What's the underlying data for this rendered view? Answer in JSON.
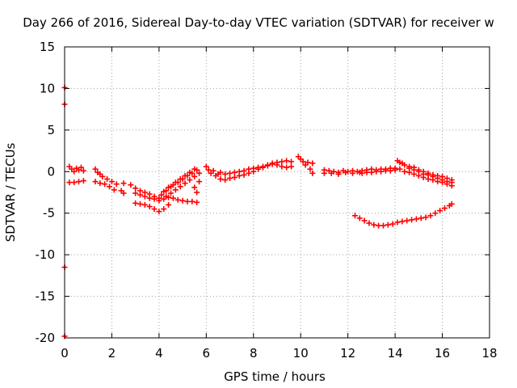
{
  "chart_data": {
    "type": "scatter",
    "title": "Day 266 of 2016, Sidereal Day-to-day VTEC variation (SDTVAR) for receiver w",
    "xlabel": "GPS time / hours",
    "ylabel": "SDTVAR / TECUs",
    "xlim": [
      0,
      18
    ],
    "ylim": [
      -20,
      15
    ],
    "xticks": [
      0,
      2,
      4,
      6,
      8,
      10,
      12,
      14,
      16,
      18
    ],
    "yticks": [
      -20,
      -15,
      -10,
      -5,
      0,
      5,
      10,
      15
    ],
    "grid": true,
    "marker_color": "#ff0000",
    "series": [
      {
        "name": "",
        "points": [
          [
            0.2,
            0.6
          ],
          [
            0.3,
            0.3
          ],
          [
            0.4,
            0.0
          ],
          [
            0.5,
            0.4
          ],
          [
            0.6,
            0.2
          ],
          [
            0.7,
            0.5
          ],
          [
            0.8,
            0.1
          ],
          [
            0.2,
            -1.3
          ],
          [
            0.4,
            -1.3
          ],
          [
            0.6,
            -1.2
          ],
          [
            0.8,
            -1.1
          ],
          [
            1.3,
            0.3
          ],
          [
            1.4,
            -0.1
          ],
          [
            1.5,
            -0.3
          ],
          [
            1.6,
            -0.6
          ],
          [
            1.8,
            -0.9
          ],
          [
            2.0,
            -1.2
          ],
          [
            2.2,
            -1.5
          ],
          [
            1.3,
            -1.2
          ],
          [
            1.5,
            -1.4
          ],
          [
            1.7,
            -1.5
          ],
          [
            1.9,
            -1.8
          ],
          [
            2.1,
            -2.2
          ],
          [
            2.4,
            -2.3
          ],
          [
            2.5,
            -1.4
          ],
          [
            2.5,
            -2.6
          ],
          [
            2.8,
            -1.6
          ],
          [
            3.0,
            -2.0
          ],
          [
            3.2,
            -2.3
          ],
          [
            3.4,
            -2.5
          ],
          [
            3.6,
            -2.7
          ],
          [
            3.8,
            -3.0
          ],
          [
            4.0,
            -3.2
          ],
          [
            3.0,
            -2.6
          ],
          [
            3.2,
            -2.8
          ],
          [
            3.4,
            -3.0
          ],
          [
            3.6,
            -3.2
          ],
          [
            3.8,
            -3.3
          ],
          [
            4.0,
            -3.5
          ],
          [
            3.0,
            -3.8
          ],
          [
            3.2,
            -3.9
          ],
          [
            3.4,
            -4.0
          ],
          [
            3.6,
            -4.2
          ],
          [
            3.8,
            -4.5
          ],
          [
            4.0,
            -4.8
          ],
          [
            4.2,
            -4.5
          ],
          [
            4.4,
            -4.0
          ],
          [
            4.2,
            -3.3
          ],
          [
            4.4,
            -3.1
          ],
          [
            4.6,
            -3.2
          ],
          [
            4.8,
            -3.4
          ],
          [
            5.0,
            -3.5
          ],
          [
            5.2,
            -3.6
          ],
          [
            5.4,
            -3.6
          ],
          [
            5.6,
            -3.7
          ],
          [
            4.2,
            -2.4
          ],
          [
            4.4,
            -1.9
          ],
          [
            4.6,
            -1.6
          ],
          [
            4.8,
            -1.3
          ],
          [
            5.0,
            -0.9
          ],
          [
            5.2,
            -0.5
          ],
          [
            5.4,
            -0.2
          ],
          [
            5.6,
            0.2
          ],
          [
            4.3,
            -3.0
          ],
          [
            4.5,
            -2.6
          ],
          [
            4.7,
            -2.2
          ],
          [
            4.9,
            -1.8
          ],
          [
            5.1,
            -1.4
          ],
          [
            5.3,
            -1.0
          ],
          [
            5.5,
            -0.6
          ],
          [
            5.7,
            -0.2
          ],
          [
            4.1,
            -2.8
          ],
          [
            4.3,
            -2.3
          ],
          [
            4.5,
            -1.8
          ],
          [
            4.7,
            -1.3
          ],
          [
            4.9,
            -0.9
          ],
          [
            5.1,
            -0.5
          ],
          [
            5.3,
            -0.1
          ],
          [
            5.5,
            0.3
          ],
          [
            5.6,
            -2.5
          ],
          [
            5.5,
            -1.9
          ],
          [
            5.7,
            -1.2
          ],
          [
            6.0,
            0.6
          ],
          [
            6.1,
            0.2
          ],
          [
            6.2,
            -0.2
          ],
          [
            6.3,
            0.1
          ],
          [
            6.4,
            -0.5
          ],
          [
            6.5,
            -0.3
          ],
          [
            6.6,
            -0.9
          ],
          [
            6.8,
            -1.0
          ],
          [
            7.0,
            -0.8
          ],
          [
            7.2,
            -0.7
          ],
          [
            7.4,
            -0.5
          ],
          [
            7.6,
            -0.4
          ],
          [
            7.8,
            -0.2
          ],
          [
            6.6,
            -0.1
          ],
          [
            6.8,
            -0.3
          ],
          [
            7.0,
            -0.2
          ],
          [
            7.2,
            -0.1
          ],
          [
            7.4,
            0.0
          ],
          [
            7.6,
            0.1
          ],
          [
            7.8,
            0.3
          ],
          [
            8.0,
            0.0
          ],
          [
            8.2,
            0.3
          ],
          [
            8.4,
            0.5
          ],
          [
            8.6,
            0.7
          ],
          [
            8.8,
            0.9
          ],
          [
            9.0,
            1.1
          ],
          [
            9.2,
            1.2
          ],
          [
            9.4,
            1.3
          ],
          [
            9.6,
            1.2
          ],
          [
            8.0,
            0.4
          ],
          [
            8.2,
            0.5
          ],
          [
            8.4,
            0.6
          ],
          [
            8.6,
            0.8
          ],
          [
            8.8,
            1.0
          ],
          [
            9.0,
            0.8
          ],
          [
            9.2,
            0.6
          ],
          [
            9.4,
            0.5
          ],
          [
            9.6,
            0.6
          ],
          [
            9.9,
            1.8
          ],
          [
            10.0,
            1.5
          ],
          [
            10.1,
            1.2
          ],
          [
            10.2,
            0.8
          ],
          [
            10.3,
            1.1
          ],
          [
            10.4,
            0.3
          ],
          [
            10.5,
            1.0
          ],
          [
            10.5,
            -0.2
          ],
          [
            11.0,
            0.2
          ],
          [
            11.2,
            0.1
          ],
          [
            11.4,
            0.0
          ],
          [
            11.6,
            -0.1
          ],
          [
            11.8,
            0.1
          ],
          [
            12.0,
            0.0
          ],
          [
            12.2,
            0.1
          ],
          [
            12.4,
            0.0
          ],
          [
            11.0,
            -0.2
          ],
          [
            11.3,
            -0.2
          ],
          [
            11.6,
            -0.3
          ],
          [
            11.9,
            -0.1
          ],
          [
            12.2,
            -0.2
          ],
          [
            12.5,
            -0.1
          ],
          [
            12.6,
            0.1
          ],
          [
            12.8,
            0.2
          ],
          [
            13.0,
            0.3
          ],
          [
            13.2,
            0.2
          ],
          [
            13.4,
            0.3
          ],
          [
            13.6,
            0.3
          ],
          [
            13.8,
            0.4
          ],
          [
            14.0,
            0.4
          ],
          [
            14.2,
            0.3
          ],
          [
            12.6,
            -0.2
          ],
          [
            12.8,
            -0.1
          ],
          [
            13.0,
            -0.1
          ],
          [
            13.2,
            0.0
          ],
          [
            13.4,
            0.0
          ],
          [
            13.6,
            0.1
          ],
          [
            13.8,
            0.1
          ],
          [
            14.0,
            0.2
          ],
          [
            14.1,
            1.3
          ],
          [
            14.2,
            1.1
          ],
          [
            14.3,
            1.0
          ],
          [
            14.4,
            0.8
          ],
          [
            14.6,
            0.6
          ],
          [
            14.8,
            0.5
          ],
          [
            15.0,
            0.2
          ],
          [
            15.2,
            0.0
          ],
          [
            15.4,
            -0.2
          ],
          [
            15.6,
            -0.4
          ],
          [
            15.8,
            -0.5
          ],
          [
            16.0,
            -0.6
          ],
          [
            16.2,
            -0.8
          ],
          [
            16.4,
            -1.0
          ],
          [
            14.4,
            0.0
          ],
          [
            14.6,
            -0.1
          ],
          [
            14.8,
            -0.3
          ],
          [
            15.0,
            -0.5
          ],
          [
            15.2,
            -0.7
          ],
          [
            15.4,
            -0.9
          ],
          [
            15.6,
            -1.0
          ],
          [
            15.8,
            -1.2
          ],
          [
            16.0,
            -1.3
          ],
          [
            16.2,
            -1.5
          ],
          [
            16.4,
            -1.7
          ],
          [
            14.6,
            0.4
          ],
          [
            14.8,
            0.2
          ],
          [
            15.0,
            0.0
          ],
          [
            15.2,
            -0.3
          ],
          [
            15.4,
            -0.4
          ],
          [
            15.6,
            -0.6
          ],
          [
            15.8,
            -0.8
          ],
          [
            16.0,
            -1.0
          ],
          [
            16.2,
            -1.2
          ],
          [
            16.4,
            -1.3
          ],
          [
            12.3,
            -5.3
          ],
          [
            12.5,
            -5.6
          ],
          [
            12.7,
            -5.9
          ],
          [
            12.9,
            -6.2
          ],
          [
            13.1,
            -6.4
          ],
          [
            13.3,
            -6.5
          ],
          [
            13.5,
            -6.5
          ],
          [
            13.7,
            -6.4
          ],
          [
            13.9,
            -6.3
          ],
          [
            14.1,
            -6.1
          ],
          [
            14.3,
            -6.0
          ],
          [
            14.5,
            -5.9
          ],
          [
            14.7,
            -5.8
          ],
          [
            14.9,
            -5.7
          ],
          [
            15.1,
            -5.6
          ],
          [
            15.3,
            -5.5
          ],
          [
            15.5,
            -5.3
          ],
          [
            15.7,
            -5.0
          ],
          [
            15.9,
            -4.7
          ],
          [
            16.1,
            -4.4
          ],
          [
            16.3,
            -4.1
          ],
          [
            16.4,
            -3.9
          ],
          [
            0.0,
            10.1
          ],
          [
            0.0,
            8.1
          ],
          [
            0.0,
            -11.5
          ],
          [
            0.0,
            -19.8
          ]
        ]
      }
    ]
  }
}
